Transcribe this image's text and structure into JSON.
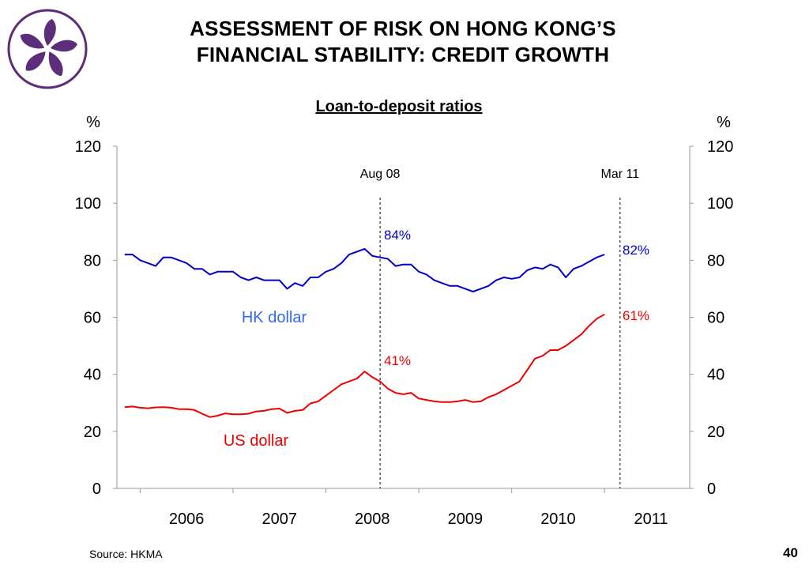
{
  "slide": {
    "title_line1": "ASSESSMENT OF RISK ON HONG KONG’S",
    "title_line2": "FINANCIAL STABILITY: CREDIT GROWTH",
    "source": "Source: HKMA",
    "page_number": "40",
    "logo_icon": "bauhinia-flower-icon",
    "logo_color": "#5c2d7a"
  },
  "chart_data": {
    "type": "line",
    "title": "Loan-to-deposit ratios",
    "ylabel_left": "%",
    "ylabel_right": "%",
    "ylim": [
      0,
      120
    ],
    "yticks": [
      0,
      20,
      40,
      60,
      80,
      100,
      120
    ],
    "x_tick_labels": [
      "2006",
      "2007",
      "2008",
      "2009",
      "2010",
      "2011"
    ],
    "x_range": [
      "2005-10",
      "2011-12"
    ],
    "grid": false,
    "series": [
      {
        "name": "HK dollar",
        "color": "#0000cc",
        "label_color": "#3366ff",
        "x": [
          "2005-11",
          "2005-12",
          "2006-01",
          "2006-02",
          "2006-03",
          "2006-04",
          "2006-05",
          "2006-06",
          "2006-07",
          "2006-08",
          "2006-09",
          "2006-10",
          "2006-11",
          "2006-12",
          "2007-01",
          "2007-02",
          "2007-03",
          "2007-04",
          "2007-05",
          "2007-06",
          "2007-07",
          "2007-08",
          "2007-09",
          "2007-10",
          "2007-11",
          "2007-12",
          "2008-01",
          "2008-02",
          "2008-03",
          "2008-04",
          "2008-05",
          "2008-06",
          "2008-07",
          "2008-08",
          "2008-09",
          "2008-10",
          "2008-11",
          "2008-12",
          "2009-01",
          "2009-02",
          "2009-03",
          "2009-04",
          "2009-05",
          "2009-06",
          "2009-07",
          "2009-08",
          "2009-09",
          "2009-10",
          "2009-11",
          "2009-12",
          "2010-01",
          "2010-02",
          "2010-03",
          "2010-04",
          "2010-05",
          "2010-06",
          "2010-07",
          "2010-08",
          "2010-09",
          "2010-10",
          "2010-11",
          "2010-12",
          "2011-01",
          "2011-02",
          "2011-03"
        ],
        "values": [
          82,
          82,
          80,
          79,
          78,
          81,
          81,
          80,
          79,
          77,
          77,
          75,
          76,
          76,
          76,
          74,
          73,
          74,
          73,
          73,
          73,
          70,
          72,
          71,
          74,
          74,
          76,
          77,
          79,
          82,
          83,
          84,
          81.5,
          81,
          80.5,
          78,
          78.5,
          78.5,
          76,
          75,
          73,
          72,
          71,
          71,
          70,
          69,
          70,
          71,
          73,
          74,
          73.5,
          74,
          76.5,
          77.5,
          77,
          78.5,
          77.5,
          74,
          77,
          78,
          79.5,
          81,
          82,
          null,
          null
        ],
        "end_label": "82%",
        "peak_label": "84%"
      },
      {
        "name": "US dollar",
        "color": "#ee0000",
        "label_color": "#ee0000",
        "x": [
          "2005-11",
          "2005-12",
          "2006-01",
          "2006-02",
          "2006-03",
          "2006-04",
          "2006-05",
          "2006-06",
          "2006-07",
          "2006-08",
          "2006-09",
          "2006-10",
          "2006-11",
          "2006-12",
          "2007-01",
          "2007-02",
          "2007-03",
          "2007-04",
          "2007-05",
          "2007-06",
          "2007-07",
          "2007-08",
          "2007-09",
          "2007-10",
          "2007-11",
          "2007-12",
          "2008-01",
          "2008-02",
          "2008-03",
          "2008-04",
          "2008-05",
          "2008-06",
          "2008-07",
          "2008-08",
          "2008-09",
          "2008-10",
          "2008-11",
          "2008-12",
          "2009-01",
          "2009-02",
          "2009-03",
          "2009-04",
          "2009-05",
          "2009-06",
          "2009-07",
          "2009-08",
          "2009-09",
          "2009-10",
          "2009-11",
          "2009-12",
          "2010-01",
          "2010-02",
          "2010-03",
          "2010-04",
          "2010-05",
          "2010-06",
          "2010-07",
          "2010-08",
          "2010-09",
          "2010-10",
          "2010-11",
          "2010-12",
          "2011-01",
          "2011-02",
          "2011-03"
        ],
        "values": [
          28.5,
          28.7,
          28.3,
          28.1,
          28.4,
          28.5,
          28.3,
          27.8,
          27.8,
          27.5,
          26.2,
          25.0,
          25.5,
          26.3,
          26.0,
          26.0,
          26.2,
          27.0,
          27.2,
          27.8,
          28.0,
          26.5,
          27.2,
          27.5,
          29.8,
          30.5,
          32.5,
          34.5,
          36.5,
          37.5,
          38.5,
          41,
          39,
          37.5,
          35,
          33.5,
          33,
          33.5,
          31.5,
          31,
          30.5,
          30.3,
          30.3,
          30.5,
          31,
          30.3,
          30.5,
          32,
          33,
          34.5,
          36,
          37.5,
          41.5,
          45.5,
          46.5,
          48.5,
          48.5,
          50,
          52,
          54,
          57,
          59.5,
          61,
          null,
          null
        ],
        "end_label": "61%",
        "peak_label": "41%"
      }
    ],
    "annotations": [
      {
        "label": "Aug 08",
        "x": "2008-08"
      },
      {
        "label": "Mar 11",
        "x": "2011-03"
      }
    ]
  }
}
